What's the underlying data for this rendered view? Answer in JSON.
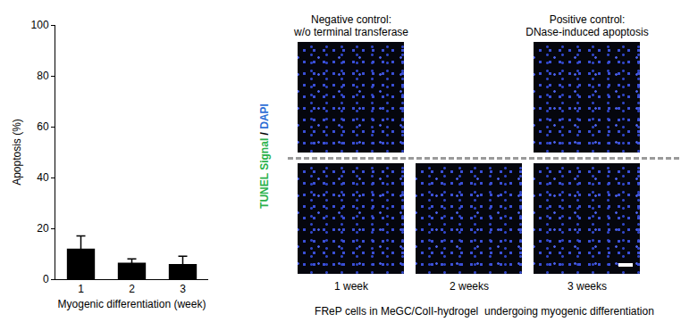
{
  "chart_data": {
    "type": "bar",
    "categories": [
      "1",
      "2",
      "3"
    ],
    "values": [
      12,
      6.5,
      6
    ],
    "errors": [
      5,
      1.5,
      3
    ],
    "color": "#000000",
    "x_label": "Myogenic differentiation (week)",
    "y_label": "Apoptosis (%)",
    "ylim": [
      0,
      100
    ],
    "yticks": [
      0,
      20,
      40,
      60,
      80,
      100
    ],
    "grid": false
  },
  "images": {
    "side_label": [
      {
        "text": "TUNEL Signal",
        "color": "#2bb24c"
      },
      {
        "text": " / ",
        "color": "#000000"
      },
      {
        "text": "DAPI",
        "color": "#2f6fd6"
      }
    ],
    "top_row": [
      "Negative control:\nw/o terminal transferase",
      null,
      "Positive control:\nDNase-induced apoptosis"
    ],
    "bottom_row": [
      "1 week",
      "2 weeks",
      "3 weeks"
    ],
    "caption": "FReP cells in MeGC/ColI-hydrogel  undergoing myogenic differentiation"
  }
}
